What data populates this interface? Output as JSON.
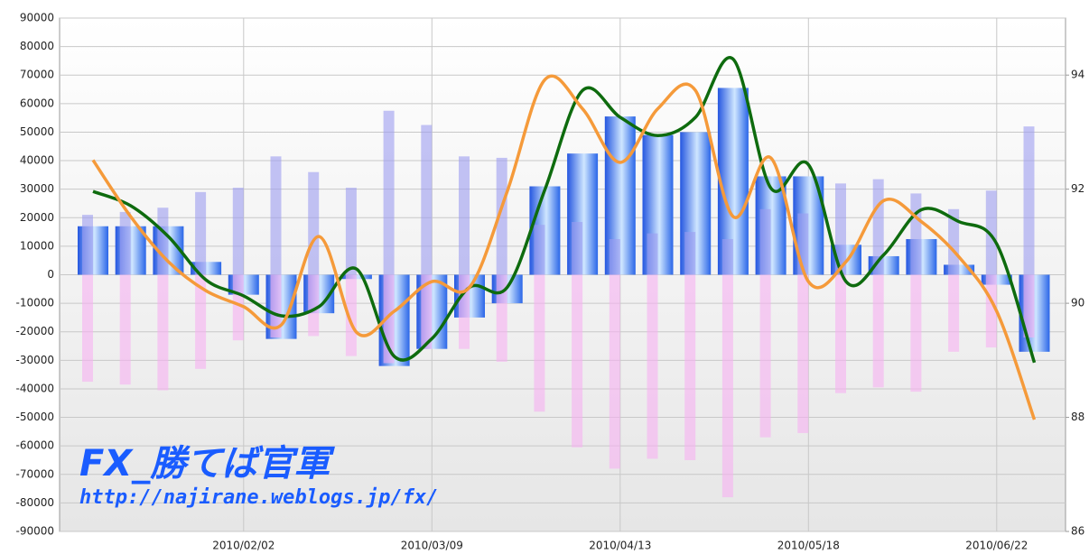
{
  "chart_data": {
    "type": "bar_line",
    "categories": [
      null,
      null,
      null,
      null,
      "2010/02/02",
      null,
      null,
      null,
      null,
      "2010/03/09",
      null,
      null,
      null,
      null,
      "2010/04/13",
      null,
      null,
      null,
      null,
      "2010/05/18",
      null,
      null,
      null,
      null,
      "2010/06/22",
      null
    ],
    "series": [
      {
        "type": "bar",
        "color": "#2a62e8",
        "values": [
          17000,
          17000,
          17000,
          4500,
          -7000,
          -22500,
          -13500,
          -1500,
          -32000,
          -26000,
          -15000,
          -10000,
          31000,
          42500,
          55500,
          49000,
          50000,
          65500,
          34500,
          34500,
          10500,
          6500,
          12500,
          3500,
          -3500,
          -27000
        ]
      },
      {
        "type": "bar",
        "color": "#9c9cf0",
        "values": [
          21000,
          22000,
          23500,
          29000,
          30500,
          41500,
          36000,
          30500,
          57500,
          52500,
          41500,
          41000,
          17500,
          18500,
          12500,
          14500,
          15000,
          12500,
          23000,
          21500,
          32000,
          33500,
          28500,
          23000,
          29500,
          52000
        ]
      },
      {
        "type": "bar",
        "color": "#f7b0f2",
        "values": [
          -37500,
          -38500,
          -40500,
          -33000,
          -23000,
          -22000,
          -21500,
          -28500,
          -31000,
          -26000,
          -26000,
          -30500,
          -48000,
          -60500,
          -68000,
          -64500,
          -65000,
          -78000,
          -57000,
          -55500,
          -41500,
          -39500,
          -41000,
          -27000,
          -25500,
          -22000
        ]
      },
      {
        "type": "line",
        "axis": "y2",
        "color": "#0e6b0e",
        "values": [
          91.96,
          91.71,
          91.17,
          90.41,
          90.13,
          89.78,
          89.94,
          90.6,
          89.07,
          89.38,
          90.28,
          90.28,
          91.99,
          93.73,
          93.26,
          92.94,
          93.26,
          94.28,
          92.02,
          92.43,
          90.38,
          90.85,
          91.64,
          91.43,
          91.04,
          88.96
        ]
      },
      {
        "type": "line",
        "axis": "y2",
        "color": "#f59a3a",
        "values": [
          92.51,
          91.52,
          90.73,
          90.22,
          89.94,
          89.62,
          91.17,
          89.49,
          89.86,
          90.38,
          90.28,
          91.96,
          93.92,
          93.41,
          92.47,
          93.41,
          93.73,
          91.52,
          92.55,
          90.38,
          90.73,
          91.8,
          91.43,
          90.81,
          89.86,
          87.96
        ]
      }
    ],
    "ylim": [
      -90000,
      90000
    ],
    "yticks": [
      -90000,
      -80000,
      -70000,
      -60000,
      -50000,
      -40000,
      -30000,
      -20000,
      -10000,
      0,
      10000,
      20000,
      30000,
      40000,
      50000,
      60000,
      70000,
      80000,
      90000
    ],
    "y2lim": [
      86,
      95
    ],
    "y2ticks": [
      86,
      88,
      90,
      92,
      94
    ],
    "grid": true,
    "watermark": "FX_勝てば官軍",
    "watermark_url": "http://najirane.weblogs.jp/fx/"
  }
}
